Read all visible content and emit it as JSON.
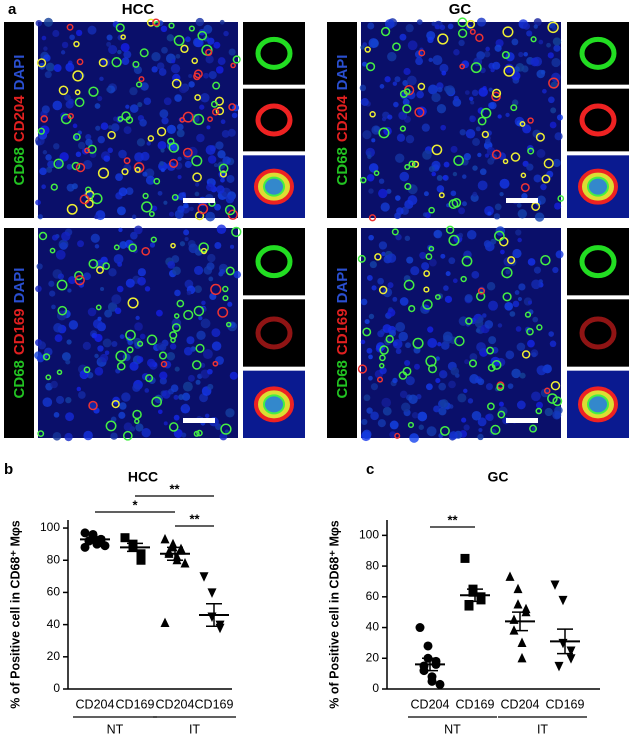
{
  "figure": {
    "panel_label": "a",
    "columns": [
      "HCC",
      "GC"
    ],
    "row_labels": [
      [
        {
          "text": "CD68",
          "color": "#22c322"
        },
        {
          "text": "CD204",
          "color": "#e02020"
        },
        {
          "text": "DAPI",
          "color": "#2a4fd0"
        }
      ],
      [
        {
          "text": "CD68",
          "color": "#22c322"
        },
        {
          "text": "CD169",
          "color": "#e02020"
        },
        {
          "text": "DAPI",
          "color": "#2a4fd0"
        }
      ]
    ]
  },
  "chart_data": [
    {
      "type": "strip",
      "panel_label": "b",
      "title": "HCC",
      "y_label": "% of Positive cell in CD68⁺ Mφs",
      "categories": [
        "CD204",
        "CD169",
        "CD204",
        "CD169"
      ],
      "group_labels": [
        "NT",
        "IT"
      ],
      "markers": [
        "circle",
        "square",
        "triangle",
        "triangle-down"
      ],
      "points": [
        [
          97,
          95,
          94,
          93,
          93,
          92,
          92,
          91,
          90,
          89,
          88,
          96,
          94,
          91
        ],
        [
          94,
          90,
          88,
          84,
          80
        ],
        [
          93,
          90,
          88,
          87,
          86,
          85,
          84,
          82,
          80,
          78,
          41
        ],
        [
          70,
          60,
          45,
          40,
          38
        ]
      ],
      "means": [
        93,
        88,
        84,
        46
      ],
      "errors": [
        1,
        2.5,
        4,
        7
      ],
      "significance": [
        "*",
        "**",
        "**"
      ],
      "ylim": [
        0,
        105
      ],
      "yticks": [
        0,
        20,
        40,
        60,
        80,
        100
      ],
      "color": "#000000"
    },
    {
      "type": "strip",
      "panel_label": "c",
      "title": "GC",
      "y_label": "% of Positive cell in CD68⁺ Mφs",
      "categories": [
        "CD204",
        "CD169",
        "CD204",
        "CD169"
      ],
      "group_labels": [
        "NT",
        "IT"
      ],
      "markers": [
        "circle",
        "square",
        "triangle",
        "triangle-down"
      ],
      "points": [
        [
          40,
          28,
          20,
          18,
          16,
          15,
          12,
          8,
          5,
          3
        ],
        [
          85,
          65,
          63,
          60,
          58,
          55,
          54
        ],
        [
          73,
          65,
          55,
          52,
          50,
          45,
          38,
          30,
          20
        ],
        [
          68,
          58,
          30,
          25,
          20,
          15
        ]
      ],
      "means": [
        16,
        61,
        44,
        31
      ],
      "errors": [
        4,
        4,
        6,
        8
      ],
      "significance": [
        "**"
      ],
      "ylim": [
        0,
        110
      ],
      "yticks": [
        0,
        20,
        40,
        60,
        80,
        100
      ],
      "color": "#000000"
    }
  ]
}
